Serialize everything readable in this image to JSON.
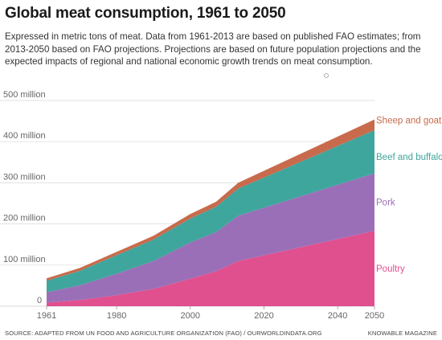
{
  "title": "Global meat consumption, 1961 to 2050",
  "subtitle": "Expressed in metric tons of meat. Data from 1961-2013 are based on published FAO estimates; from 2013-2050 based on FAO projections. Projections are based on future population projections and the expected impacts of regional and national economic growth trends on meat consumption.",
  "footer": {
    "source": "SOURCE: ADAPTED FROM UN FOOD AND AGRICULTURE ORGANIZATION (FAO) / OURWORLDINDATA.ORG",
    "publisher": "KNOWABLE MAGAZINE"
  },
  "colors": {
    "poultry": "#e0508f",
    "pork": "#9b6fb8",
    "beef": "#3fa69d",
    "sheep": "#c86b4c",
    "grid": "#d8d8d8"
  },
  "chart_data": {
    "type": "area",
    "stacked": true,
    "title": "Global meat consumption, 1961 to 2050",
    "x": [
      1961,
      1970,
      1980,
      1990,
      2000,
      2007,
      2013,
      2050
    ],
    "series": [
      {
        "name": "Poultry",
        "values": [
          9,
          15,
          27,
          42,
          67,
          85,
          110,
          183
        ]
      },
      {
        "name": "Pork",
        "values": [
          25,
          36,
          52,
          68,
          88,
          95,
          110,
          140
        ]
      },
      {
        "name": "Beef and buffalo",
        "values": [
          28,
          35,
          45,
          52,
          58,
          62,
          66,
          105
        ]
      },
      {
        "name": "Sheep and goat",
        "values": [
          6,
          7,
          8,
          9,
          11,
          12,
          14,
          26
        ]
      }
    ],
    "ytick_labels": [
      "0",
      "100 million",
      "200 million",
      "300 million",
      "400 million",
      "500 million"
    ],
    "xtick_labels": [
      "1961",
      "1980",
      "2000",
      "2020",
      "2040",
      "2050"
    ],
    "xlim": [
      1961,
      2050
    ],
    "ylim": [
      0,
      500
    ],
    "grid": true,
    "legend": "labels at right end of series"
  }
}
